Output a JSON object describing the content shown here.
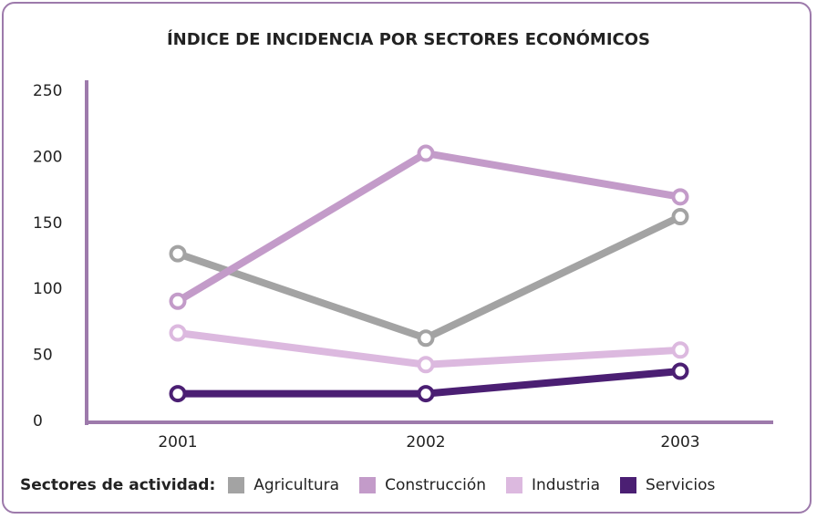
{
  "chart_data": {
    "type": "line",
    "title": "ÍNDICE DE INCIDENCIA POR SECTORES ECONÓMICOS",
    "legend_title": "Sectores de actividad:",
    "categories": [
      "2001",
      "2002",
      "2003"
    ],
    "series": [
      {
        "name": "Agricultura",
        "color": "#a3a3a3",
        "values": [
          127,
          63,
          155
        ]
      },
      {
        "name": "Construcción",
        "color": "#c39bc9",
        "values": [
          91,
          203,
          170
        ]
      },
      {
        "name": "Industria",
        "color": "#dcb9df",
        "values": [
          67,
          43,
          54
        ]
      },
      {
        "name": "Servicios",
        "color": "#4b1f73",
        "values": [
          21,
          21,
          38
        ]
      }
    ],
    "ylim": [
      0,
      250
    ],
    "yticks": [
      0,
      50,
      100,
      150,
      200,
      250
    ],
    "legend": "bottom"
  }
}
